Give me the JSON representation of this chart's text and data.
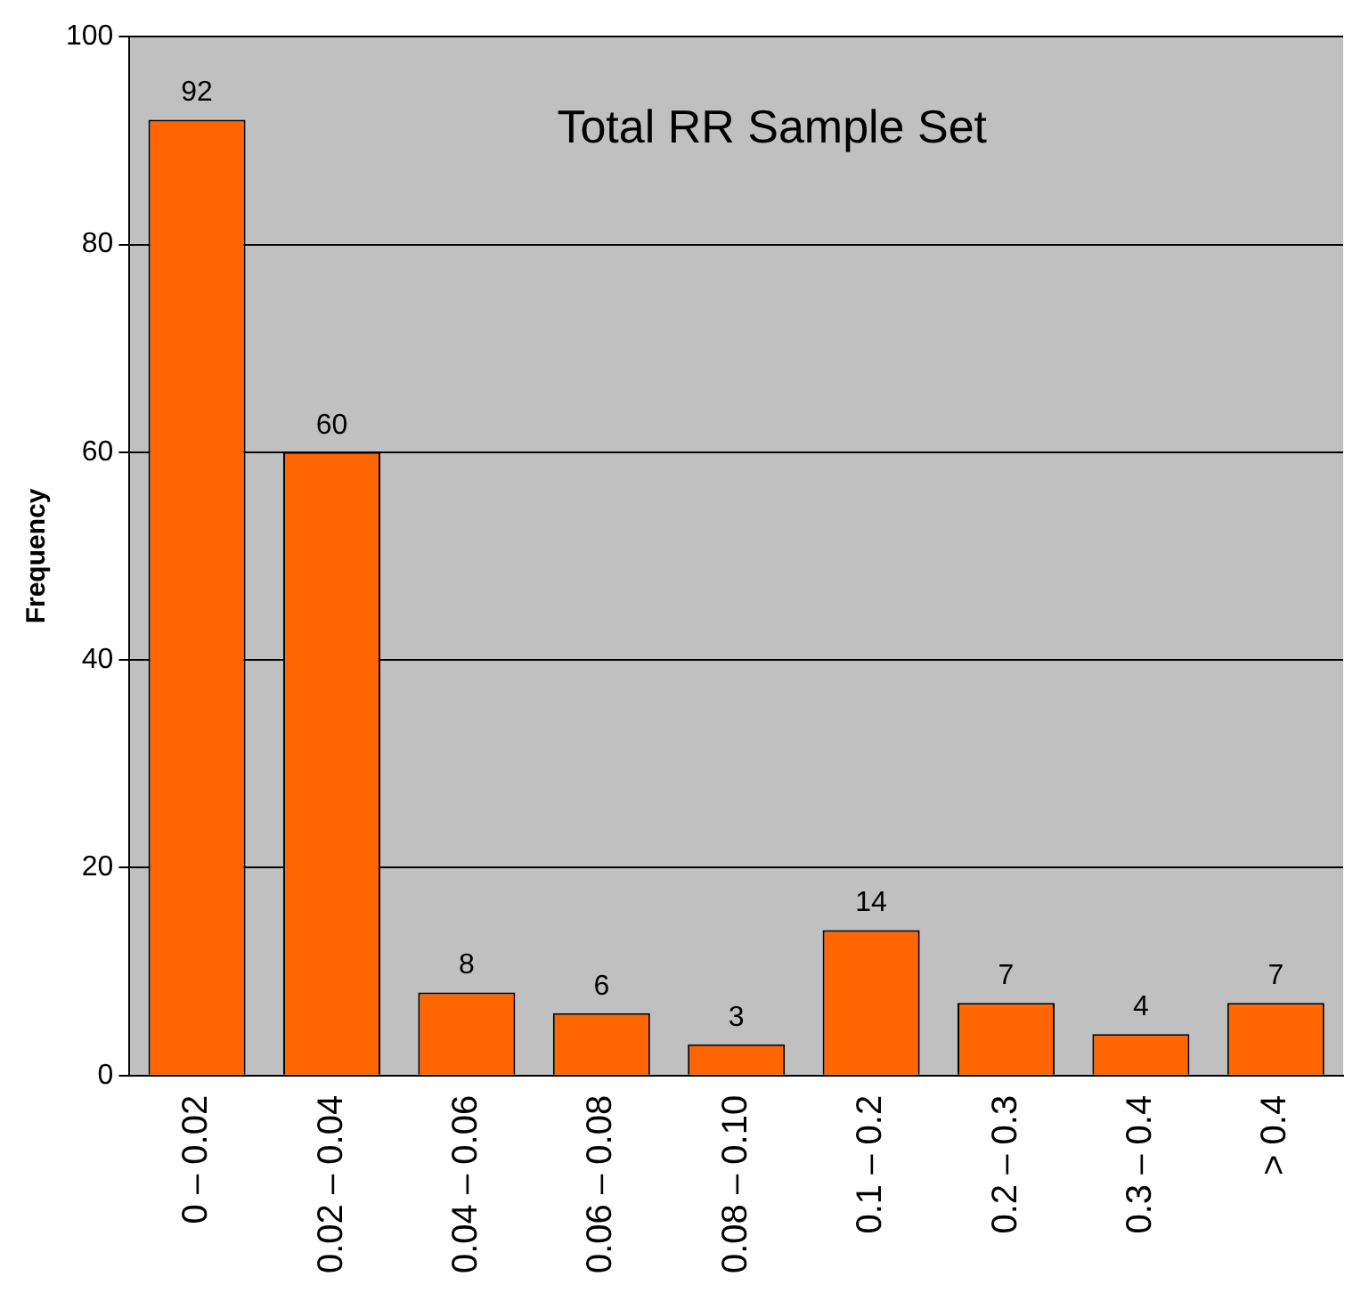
{
  "chart_data": {
    "type": "bar",
    "title": "Total RR Sample Set",
    "ylabel": "Frequency",
    "categories": [
      "0 – 0.02",
      "0.02 – 0.04",
      "0.04 – 0.06",
      "0.06 – 0.08",
      "0.08 – 0.10",
      "0.1 – 0.2",
      "0.2 – 0.3",
      "0.3 – 0.4",
      "> 0.4"
    ],
    "values": [
      92,
      60,
      8,
      6,
      3,
      14,
      7,
      4,
      7
    ],
    "color": "#ff6600",
    "ylim": [
      0,
      100
    ],
    "yticks": [
      0,
      20,
      40,
      60,
      80,
      100
    ],
    "grid": "y",
    "legend": false,
    "data_labels": true
  }
}
